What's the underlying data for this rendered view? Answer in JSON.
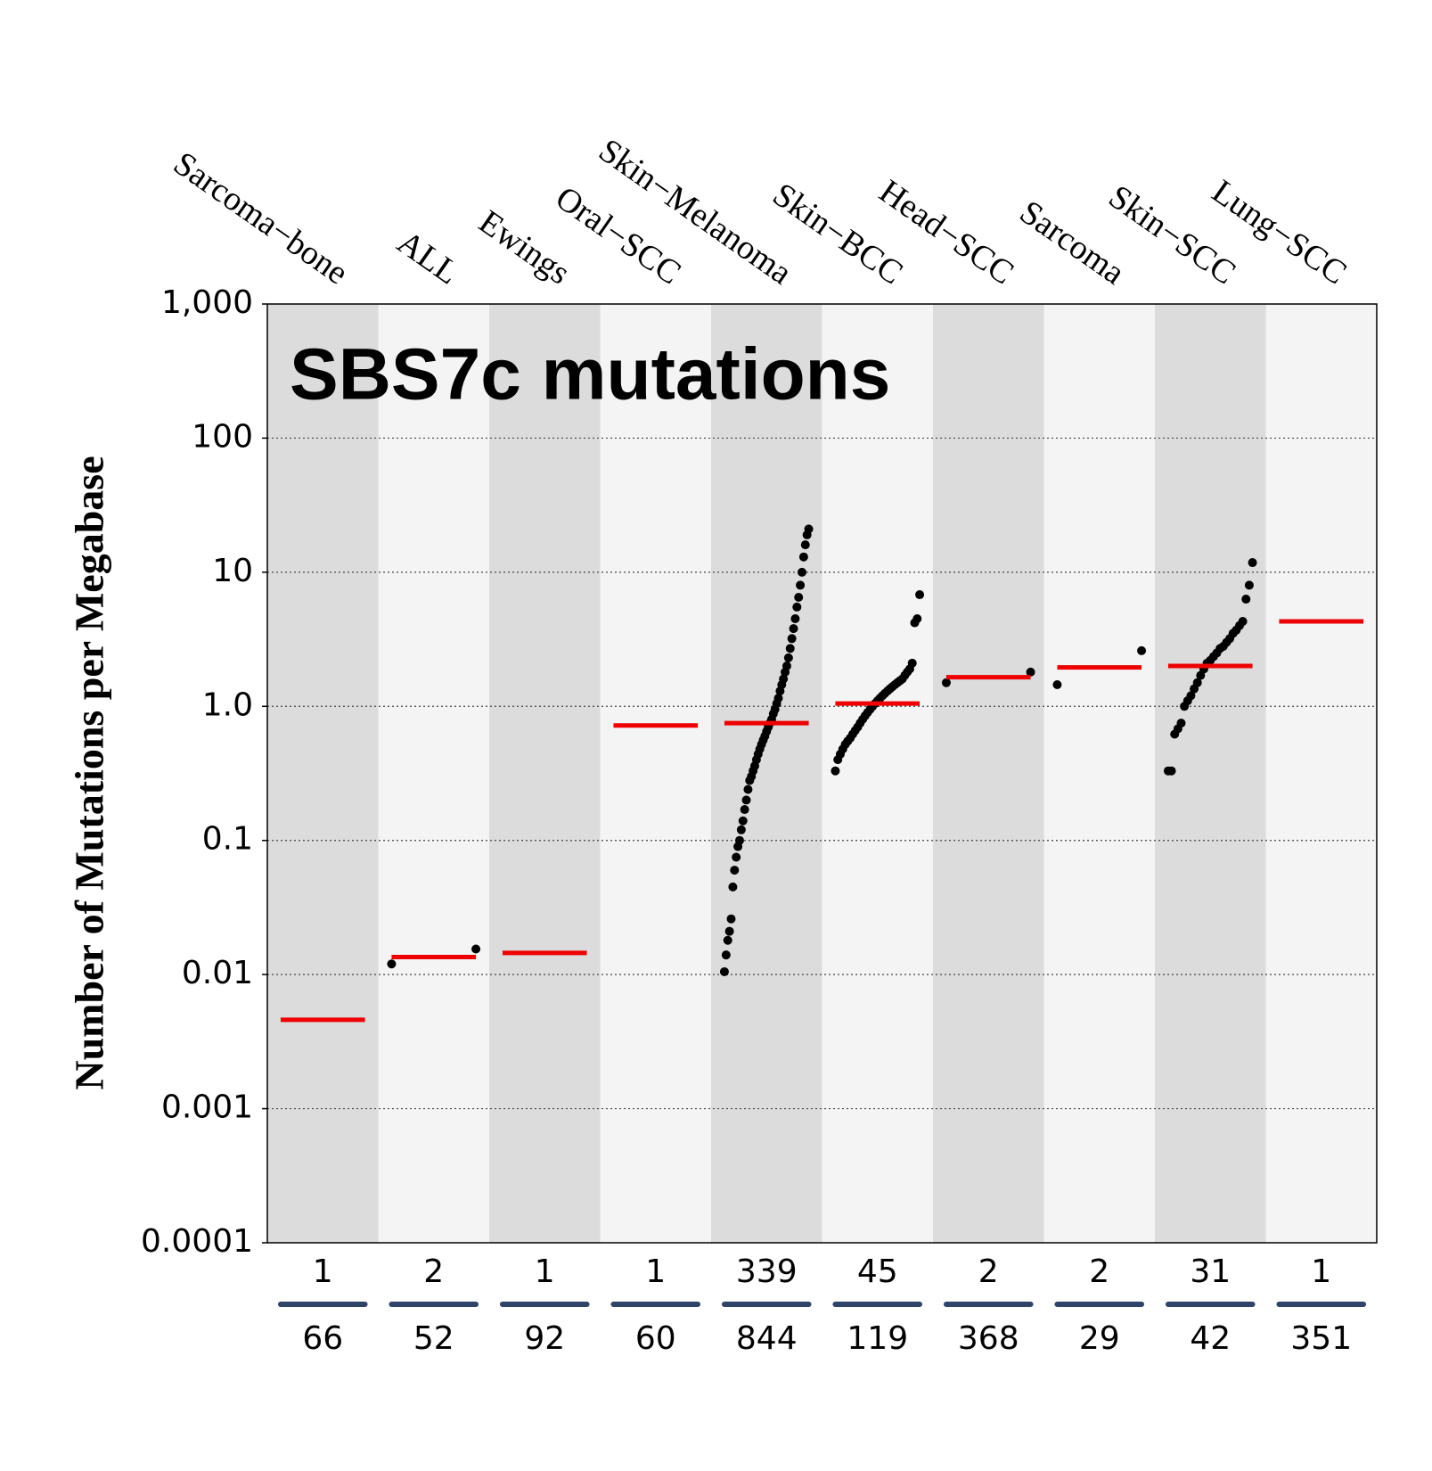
{
  "chart_data": {
    "type": "dotplot",
    "title": "SBS7c mutations",
    "y_label": "Number of Mutations per Megabase",
    "log_y": true,
    "ylim": [
      0.0001,
      1000
    ],
    "yticks": [
      0.0001,
      0.001,
      0.01,
      0.1,
      {
        "value": 1,
        "label": "1.0"
      },
      10,
      100,
      {
        "value": 1000,
        "label": "1,000"
      }
    ],
    "grid": true,
    "median_color": "#ee0000",
    "point_color": "#000000",
    "categories": [
      "Sarcoma−bone",
      "ALL",
      "Ewings",
      "Oral−SCC",
      "Skin−Melanoma",
      "Skin−BCC",
      "Head−SCC",
      "Sarcoma",
      "Skin−SCC",
      "Lung−SCC"
    ],
    "medians": [
      0.0046,
      0.0135,
      0.0145,
      0.72,
      0.75,
      1.05,
      1.65,
      1.95,
      2.0,
      4.3
    ],
    "samples_with_signature": [
      1,
      2,
      1,
      1,
      339,
      45,
      2,
      2,
      31,
      1
    ],
    "samples_total": [
      66,
      52,
      92,
      60,
      844,
      119,
      368,
      29,
      42,
      351
    ],
    "points": [
      [],
      [
        0.012,
        0.0155
      ],
      [],
      [],
      [
        0.0105,
        0.014,
        0.018,
        0.021,
        0.026,
        0.045,
        0.06,
        0.075,
        0.09,
        0.1,
        0.12,
        0.14,
        0.17,
        0.2,
        0.24,
        0.28,
        0.3,
        0.33,
        0.36,
        0.4,
        0.44,
        0.48,
        0.52,
        0.56,
        0.6,
        0.65,
        0.7,
        0.75,
        0.8,
        0.88,
        0.95,
        1.05,
        1.15,
        1.3,
        1.45,
        1.6,
        1.8,
        2.0,
        2.3,
        2.7,
        3.2,
        3.8,
        4.5,
        5.5,
        6.5,
        8,
        10,
        13,
        16,
        19,
        21
      ],
      [
        0.33,
        0.4,
        0.44,
        0.48,
        0.52,
        0.55,
        0.58,
        0.62,
        0.66,
        0.7,
        0.75,
        0.8,
        0.85,
        0.9,
        0.95,
        1.0,
        1.05,
        1.1,
        1.15,
        1.2,
        1.25,
        1.3,
        1.35,
        1.4,
        1.45,
        1.5,
        1.55,
        1.6,
        1.7,
        1.8,
        1.9,
        2.1,
        4.2,
        4.5,
        6.8
      ],
      [
        1.5,
        1.8
      ],
      [
        1.45,
        2.6
      ],
      [
        0.33,
        0.33,
        0.62,
        0.68,
        0.75,
        1.0,
        1.1,
        1.2,
        1.35,
        1.5,
        1.7,
        1.9,
        2.1,
        2.2,
        2.35,
        2.5,
        2.7,
        2.8,
        3.0,
        3.2,
        3.5,
        3.7,
        4.0,
        4.3,
        6.3,
        8.0,
        11.8
      ],
      []
    ]
  }
}
